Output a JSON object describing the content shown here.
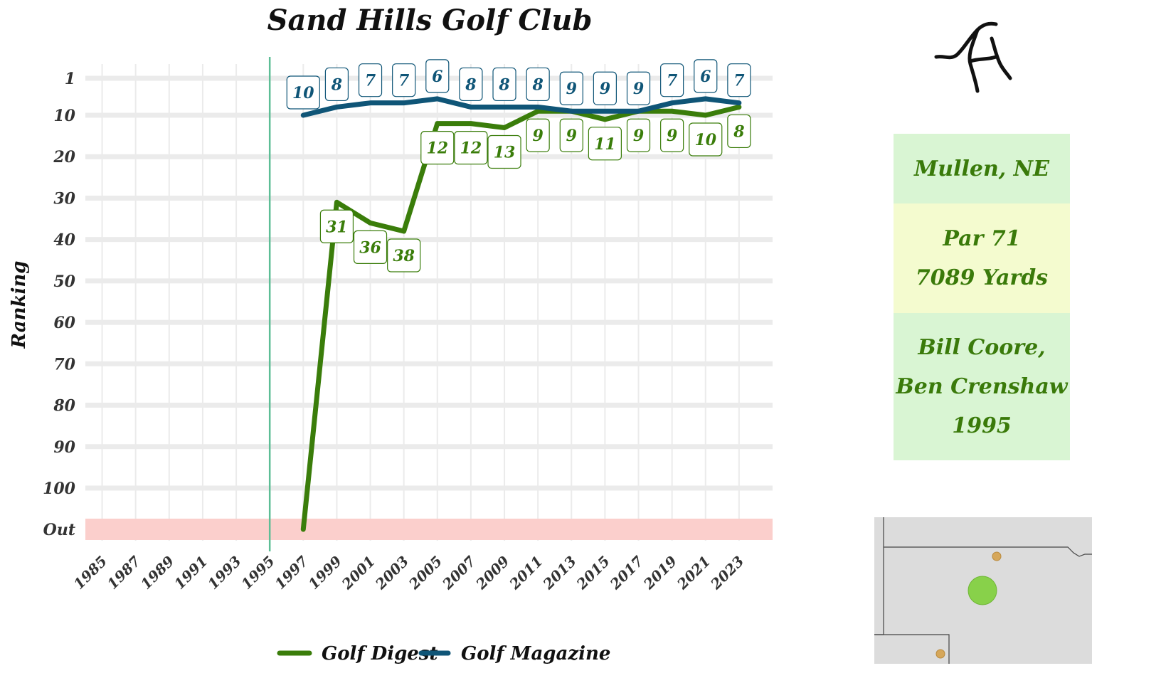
{
  "chart_data": {
    "type": "line",
    "title": "Sand Hills Golf Club",
    "ylabel": "Ranking",
    "xlabel": "",
    "x_ticks": [
      "1985",
      "1987",
      "1989",
      "1991",
      "1993",
      "1995",
      "1997",
      "1999",
      "2001",
      "2003",
      "2005",
      "2007",
      "2009",
      "2011",
      "2013",
      "2015",
      "2017",
      "2019",
      "2021",
      "2023"
    ],
    "y_ticks": [
      "1",
      "10",
      "20",
      "30",
      "40",
      "50",
      "60",
      "70",
      "80",
      "90",
      "100",
      "Out"
    ],
    "y_tick_values": [
      1,
      10,
      20,
      30,
      40,
      50,
      60,
      70,
      80,
      90,
      100,
      110
    ],
    "ylim": [
      1,
      110
    ],
    "y_reversed": true,
    "xlim": [
      1984,
      2025
    ],
    "grid": true,
    "out_band_color": "#fbcfcc",
    "vline_year": 1995,
    "vline_color": "#5dbe96",
    "legend_position": "bottom",
    "series": [
      {
        "name": "Golf Digest",
        "color": "#3a7d0a",
        "x": [
          1997,
          1999,
          2001,
          2003,
          2005,
          2007,
          2009,
          2011,
          2013,
          2015,
          2017,
          2019,
          2021,
          2023
        ],
        "values": [
          110,
          31,
          36,
          38,
          12,
          12,
          13,
          9,
          9,
          11,
          9,
          9,
          10,
          8
        ],
        "labels": [
          "",
          "31",
          "36",
          "38",
          "12",
          "12",
          "13",
          "9",
          "9",
          "11",
          "9",
          "9",
          "10",
          "8"
        ]
      },
      {
        "name": "Golf Magazine",
        "color": "#0f5577",
        "x": [
          1997,
          1999,
          2001,
          2003,
          2005,
          2007,
          2009,
          2011,
          2013,
          2015,
          2017,
          2019,
          2021,
          2023
        ],
        "values": [
          10,
          8,
          7,
          7,
          6,
          8,
          8,
          8,
          9,
          9,
          9,
          7,
          6,
          7
        ],
        "labels": [
          "10",
          "8",
          "7",
          "7",
          "6",
          "8",
          "8",
          "8",
          "9",
          "9",
          "9",
          "7",
          "6",
          "7"
        ]
      }
    ]
  },
  "info": {
    "location": "Mullen, NE",
    "par": "Par 71",
    "yards": "7089 Yards",
    "designer_1": "Bill Coore,",
    "designer_2": "Ben Crenshaw",
    "year": "1995"
  },
  "colors": {
    "info_text": "#3a7a0a",
    "info_green_bg": "#d9f5d3",
    "info_yellow_bg": "#f4fbcf",
    "map_bg": "#dcdcdc",
    "map_course": "#88d14a",
    "map_other": "#d6a75a"
  }
}
